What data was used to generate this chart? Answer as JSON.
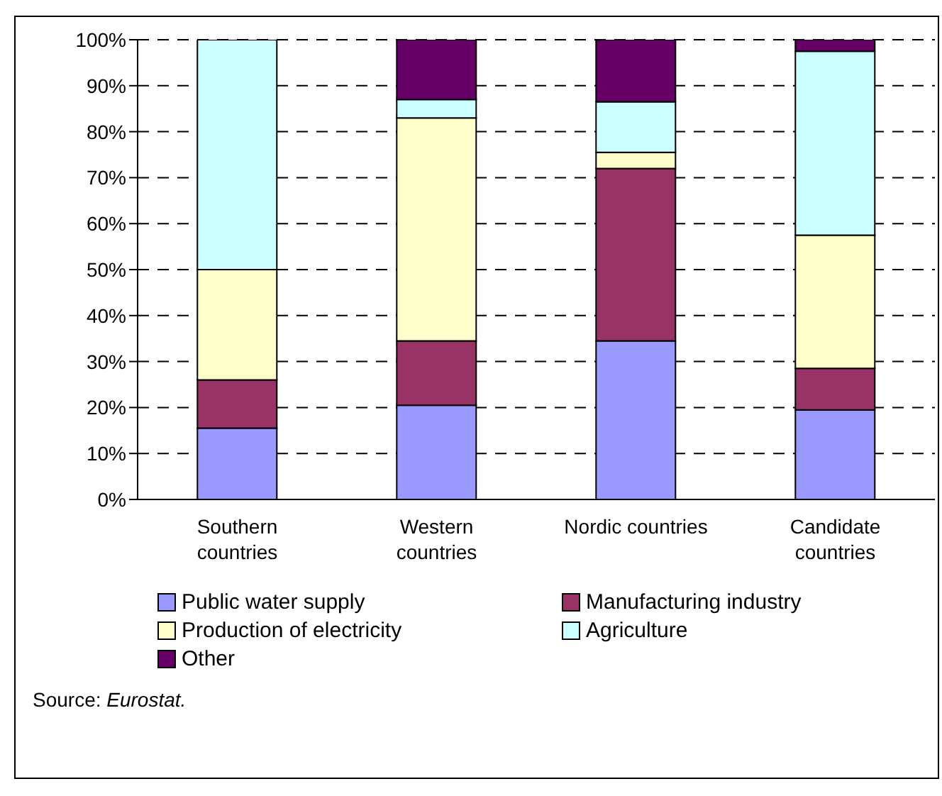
{
  "chart_data": {
    "type": "bar",
    "stacked": true,
    "categories": [
      "Southern countries",
      "Western countries",
      "Nordic countries",
      "Candidate countries"
    ],
    "series": [
      {
        "name": "Public water supply",
        "color": "#9999ff",
        "values": [
          15.5,
          20.5,
          34.5,
          19.5
        ]
      },
      {
        "name": "Manufacturing industry",
        "color": "#993366",
        "values": [
          10.5,
          14,
          37.5,
          9
        ]
      },
      {
        "name": "Production of electricity",
        "color": "#ffffcc",
        "values": [
          24,
          48.5,
          3.5,
          29
        ]
      },
      {
        "name": "Agriculture",
        "color": "#ccffff",
        "values": [
          50,
          4,
          11,
          40
        ]
      },
      {
        "name": "Other",
        "color": "#660066",
        "values": [
          0,
          13,
          13.5,
          2.5
        ]
      }
    ],
    "ylim": [
      0,
      100
    ],
    "yticks": [
      {
        "value": 0,
        "label": "0%"
      },
      {
        "value": 10,
        "label": "10%"
      },
      {
        "value": 20,
        "label": "20%"
      },
      {
        "value": 30,
        "label": "30%"
      },
      {
        "value": 40,
        "label": "40%"
      },
      {
        "value": 50,
        "label": "50%"
      },
      {
        "value": 60,
        "label": "60%"
      },
      {
        "value": 70,
        "label": "70%"
      },
      {
        "value": 80,
        "label": "80%"
      },
      {
        "value": 90,
        "label": "90%"
      },
      {
        "value": 100,
        "label": "100%"
      }
    ],
    "grid": "y",
    "legend": "bottom",
    "annotations": [
      "Source: Eurostat."
    ]
  }
}
